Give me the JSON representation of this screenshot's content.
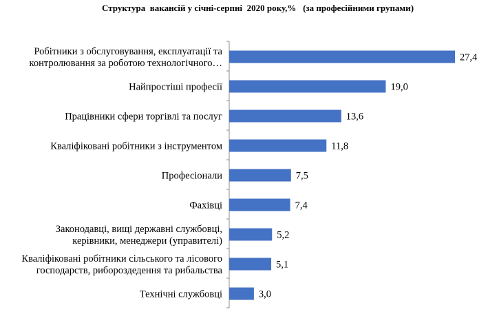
{
  "chart_data": {
    "type": "bar",
    "orientation": "horizontal",
    "title": "Структура  вакансій у січні-серпні  2020 року,%   (за професійними групами)",
    "categories": [
      [
        "Робітники з обслуговування, експлуатації та",
        "контролювання за роботою технологічного…"
      ],
      [
        "Найпростіші професії"
      ],
      [
        "Працівники сфери торгівлі та послуг"
      ],
      [
        "Кваліфіковані робітники з інструментом"
      ],
      [
        "Професіонали"
      ],
      [
        "Фахівці"
      ],
      [
        "Законодавці, вищі державні службовці,",
        "керівники, менеджери  (управителі)"
      ],
      [
        "Кваліфіковані робітники сільського та лісового",
        "господарств, рибороздедення та рибальства"
      ],
      [
        "Технічні службовці"
      ]
    ],
    "values": [
      27.4,
      19.0,
      13.6,
      11.8,
      7.5,
      7.4,
      5.2,
      5.1,
      3.0
    ],
    "value_labels": [
      "27,4",
      "19,0",
      "13,6",
      "11,8",
      "7,5",
      "7,4",
      "5,2",
      "5,1",
      "3,0"
    ],
    "bar_color": "#4472C4",
    "axis_color": "#8c8c8c",
    "grid": false,
    "legend": "none"
  }
}
